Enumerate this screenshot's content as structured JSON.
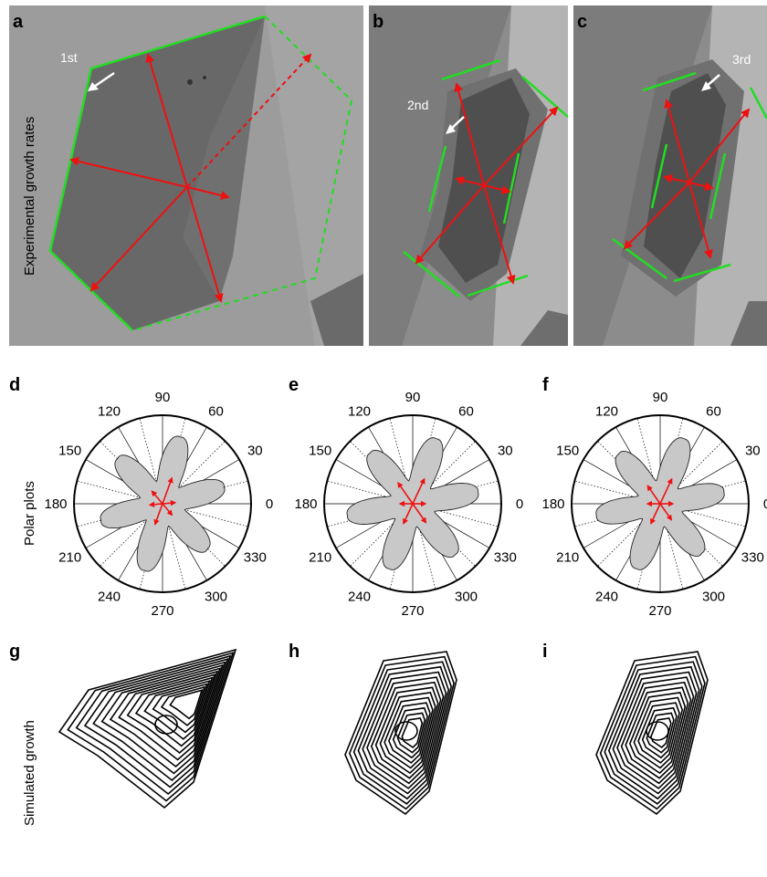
{
  "panel_labels": {
    "a": "a",
    "b": "b",
    "c": "c",
    "d": "d",
    "e": "e",
    "f": "f",
    "g": "g",
    "h": "h",
    "i": "i"
  },
  "row_labels": {
    "top": "Experimental growth rates",
    "middle": "Polar plots",
    "bottom": "Simulated growth"
  },
  "annotations": {
    "first": "1st",
    "second": "2nd",
    "third": "3rd"
  },
  "polar_ticks": [
    "0",
    "30",
    "60",
    "90",
    "120",
    "150",
    "180",
    "210",
    "240",
    "270",
    "300",
    "330"
  ],
  "colors": {
    "edge_green": "#22dd22",
    "arrow_red": "#ee1111",
    "polar_fill": "#c8c8c8",
    "crystal_light": "#8a8a8a",
    "crystal_dark": "#5e5e5e"
  }
}
